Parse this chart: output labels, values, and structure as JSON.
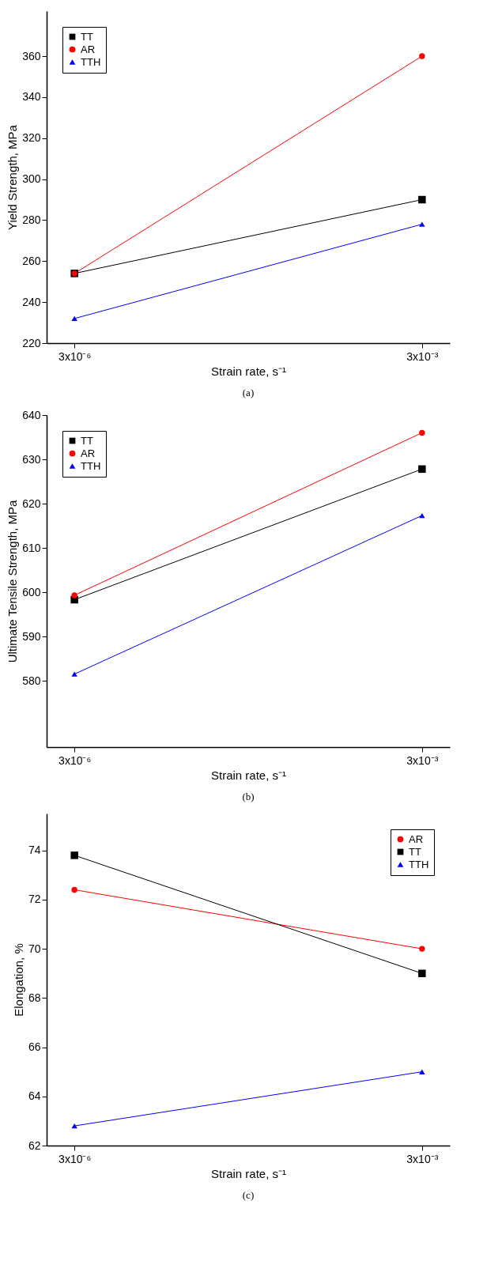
{
  "chart_data": [
    {
      "type": "line",
      "categories": [
        "3x10⁻⁶",
        "3x10⁻³"
      ],
      "xlabel": "Strain rate, s⁻¹",
      "ylabel": "Yield Strength, MPa",
      "ylim": [
        220,
        382
      ],
      "yticks": [
        220,
        240,
        260,
        280,
        300,
        320,
        340,
        360
      ],
      "legend": "top left",
      "grid": false,
      "annotations": [
        "(a)"
      ],
      "series": [
        {
          "name": "TT",
          "color": "#000000",
          "marker": "square",
          "values": [
            254,
            290
          ]
        },
        {
          "name": "AR",
          "color": "#ff0000",
          "marker": "circle",
          "values": [
            254,
            360
          ]
        },
        {
          "name": "TTH",
          "color": "#0000ff",
          "marker": "triangle",
          "values": [
            232,
            278
          ]
        }
      ]
    },
    {
      "type": "line",
      "categories": [
        "3x10⁻⁶",
        "3x10⁻³"
      ],
      "xlabel": "Strain rate, s⁻¹",
      "ylabel": "Ultimate Tensile Strength, MPa",
      "ylim": [
        565,
        640
      ],
      "yticks": [
        580,
        590,
        600,
        610,
        620,
        630,
        640
      ],
      "legend": "top left",
      "grid": false,
      "annotations": [
        "(b)"
      ],
      "series": [
        {
          "name": "TT",
          "color": "#000000",
          "marker": "square",
          "values": [
            598.3,
            627.8
          ]
        },
        {
          "name": "AR",
          "color": "#ff0000",
          "marker": "circle",
          "values": [
            599.3,
            636
          ]
        },
        {
          "name": "TTH",
          "color": "#0000ff",
          "marker": "triangle",
          "values": [
            581.5,
            617.3
          ]
        }
      ]
    },
    {
      "type": "line",
      "categories": [
        "3x10⁻⁶",
        "3x10⁻³"
      ],
      "xlabel": "Strain rate, s⁻¹",
      "ylabel": "Elongation, %",
      "ylim": [
        62,
        75.5
      ],
      "yticks": [
        62,
        64,
        66,
        68,
        70,
        72,
        74
      ],
      "legend": "top right",
      "grid": false,
      "annotations": [
        "(c)"
      ],
      "series": [
        {
          "name": "AR",
          "color": "#ff0000",
          "marker": "circle",
          "values": [
            72.4,
            70
          ]
        },
        {
          "name": "TT",
          "color": "#000000",
          "marker": "square",
          "values": [
            73.8,
            69
          ]
        },
        {
          "name": "TTH",
          "color": "#0000ff",
          "marker": "triangle",
          "values": [
            62.8,
            65
          ]
        }
      ]
    }
  ]
}
